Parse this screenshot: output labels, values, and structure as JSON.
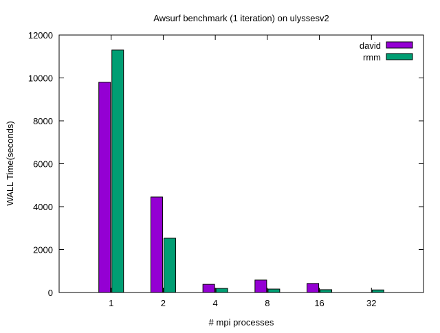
{
  "chart_data": {
    "type": "bar",
    "title": "Awsurf benchmark (1 iteration) on ulyssesv2",
    "xlabel": "# mpi processes",
    "ylabel": "WALL Time(seconds)",
    "categories": [
      "1",
      "2",
      "4",
      "8",
      "16",
      "32"
    ],
    "ylim": [
      0,
      12000
    ],
    "yticks": [
      0,
      2000,
      4000,
      6000,
      8000,
      10000,
      12000
    ],
    "grid": false,
    "legend_position": "top-right",
    "series": [
      {
        "name": "david",
        "color": "#9400d3",
        "values": [
          9800,
          4450,
          380,
          580,
          420,
          0
        ]
      },
      {
        "name": "rmm",
        "color": "#009e73",
        "values": [
          11300,
          2530,
          190,
          160,
          130,
          120
        ]
      }
    ]
  }
}
